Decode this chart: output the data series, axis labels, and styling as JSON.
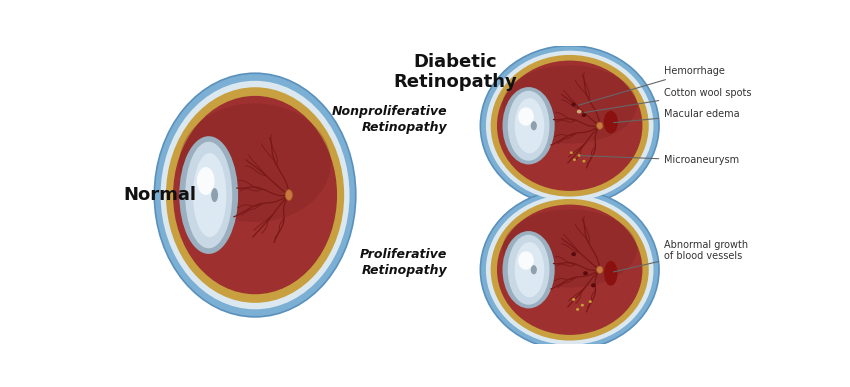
{
  "title": "Diabetic\nRetinopathy",
  "normal_label": "Normal",
  "nonproliferative_label": "Nonproliferative\nRetinopathy",
  "proliferative_label": "Proliferative\nRetinopathy",
  "annotations_nonprolif": [
    "Hemorrhage",
    "Cotton wool spots",
    "Macular edema",
    "Microaneurysm"
  ],
  "annotations_prolif": [
    "Abnormal growth\nof blood vessels"
  ],
  "bg_color": "#ffffff",
  "eye_blue_outer": "#7bafd4",
  "eye_white_sclera": "#dce8f0",
  "eye_choroid": "#c8a040",
  "eye_retina": "#9e3030",
  "eye_retina_dark": "#7a2020",
  "eye_cornea_outer": "#aabfce",
  "eye_cornea_mid": "#c8d8e4",
  "eye_cornea_light": "#dce8f2",
  "eye_cornea_white": "#eef4f8",
  "vessel_color": "#7a1818",
  "hemorrhage_color": "#6a0c0c",
  "cotton_color": "#e8d5c5",
  "microaneurysm_color": "#c8a030",
  "macular_color": "#8b1010",
  "annotation_color": "#333333",
  "text_color": "#111111",
  "optic_disc_color": "#c87840"
}
